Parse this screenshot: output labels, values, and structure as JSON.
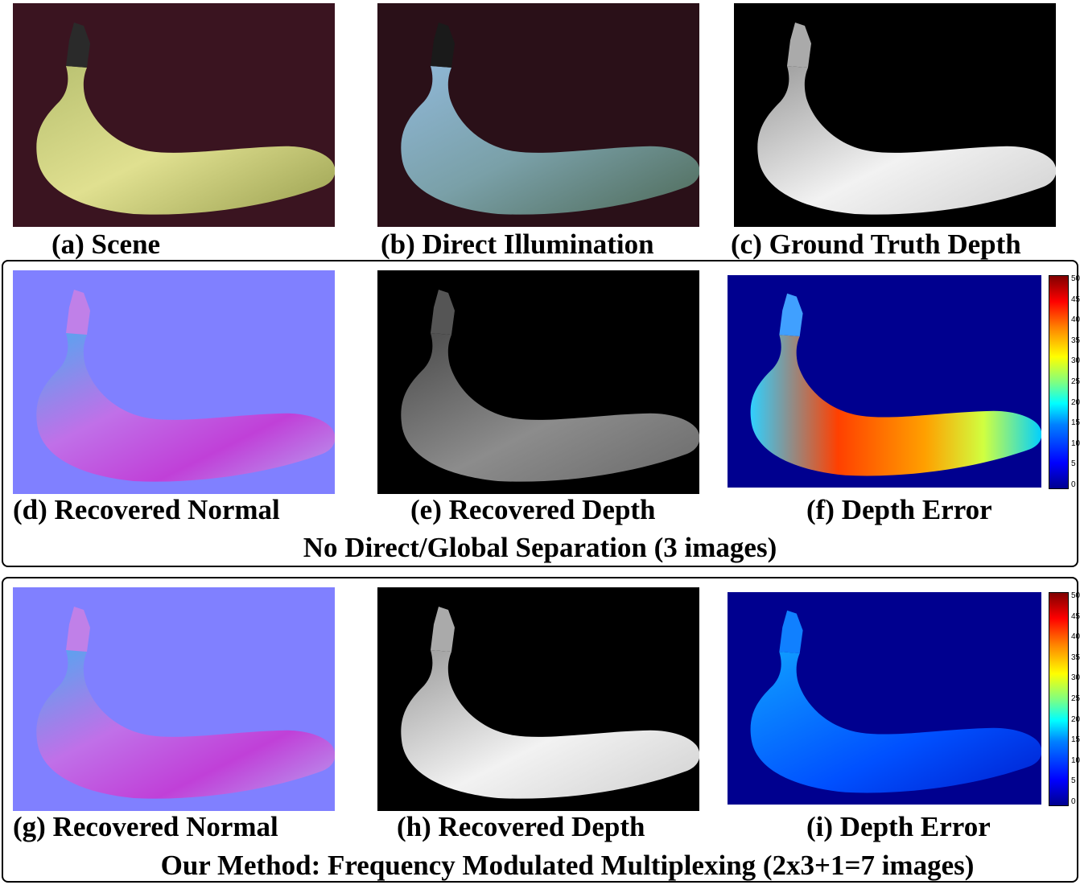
{
  "row1": {
    "captions": [
      "(a) Scene",
      "(b) Direct Illumination",
      "(c) Ground Truth Depth"
    ]
  },
  "row2": {
    "captions": [
      "(d) Recovered Normal",
      "(e) Recovered Depth",
      "(f) Depth Error"
    ],
    "title": "No Direct/Global  Separation (3 images)"
  },
  "row3": {
    "captions": [
      "(g) Recovered Normal",
      "(h) Recovered Depth",
      "(i) Depth Error"
    ],
    "title": "Our Method: Frequency Modulated Multiplexing (2x3+1=7 images)"
  },
  "colorbar": {
    "ticks": [
      "50",
      "45",
      "40",
      "35",
      "30",
      "25",
      "20",
      "15",
      "10",
      "5",
      "0"
    ]
  },
  "colors": {
    "scene_bg": "#3a1420",
    "normal_bg": "#8080ff",
    "error_bg": "#00008f",
    "depth_bg": "#000000"
  }
}
